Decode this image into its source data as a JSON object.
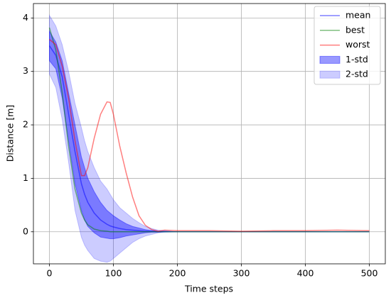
{
  "chart_data": {
    "type": "line",
    "xlabel": "Time steps",
    "ylabel": "Distance [m]",
    "x": [
      0,
      10,
      20,
      30,
      40,
      50,
      55,
      60,
      70,
      80,
      90,
      95,
      100,
      110,
      120,
      130,
      140,
      150,
      160,
      170,
      180,
      200,
      250,
      300,
      350,
      400,
      450,
      500
    ],
    "series": [
      {
        "name": "mean",
        "color": "#0000ff",
        "opacity": 0.5,
        "values": [
          3.48,
          3.3,
          2.9,
          2.2,
          1.5,
          0.9,
          0.7,
          0.55,
          0.35,
          0.22,
          0.14,
          0.11,
          0.09,
          0.06,
          0.04,
          0.03,
          0.02,
          0.01,
          0.01,
          0,
          0,
          0,
          0,
          0,
          0,
          0,
          0,
          0
        ]
      },
      {
        "name": "best",
        "color": "#008000",
        "opacity": 0.5,
        "values": [
          3.82,
          3.4,
          2.6,
          1.6,
          0.8,
          0.35,
          0.22,
          0.13,
          0.05,
          0.02,
          0.01,
          0,
          0,
          0,
          0,
          0,
          0,
          0,
          0,
          0,
          0,
          0,
          0,
          0,
          0,
          0,
          0,
          0
        ]
      },
      {
        "name": "worst",
        "color": "#ff0000",
        "opacity": 0.5,
        "values": [
          3.6,
          3.5,
          3.1,
          2.5,
          1.7,
          1.05,
          1.05,
          1.2,
          1.75,
          2.2,
          2.43,
          2.42,
          2.2,
          1.6,
          1.1,
          0.65,
          0.3,
          0.12,
          0.04,
          0.01,
          0.03,
          0.02,
          0.02,
          0.01,
          0.02,
          0.02,
          0.03,
          0.02
        ]
      }
    ],
    "bands": [
      {
        "name": "1-std",
        "color": "#0000ff",
        "opacity": 0.4,
        "upper": [
          3.75,
          3.55,
          3.2,
          2.6,
          2.0,
          1.4,
          1.2,
          1.0,
          0.75,
          0.55,
          0.4,
          0.35,
          0.3,
          0.22,
          0.15,
          0.1,
          0.07,
          0.04,
          0.02,
          0.01,
          0.01,
          0,
          0,
          0,
          0,
          0,
          0,
          0
        ],
        "lower": [
          3.2,
          3.05,
          2.5,
          1.7,
          0.9,
          0.4,
          0.22,
          0.1,
          -0.02,
          -0.1,
          -0.12,
          -0.13,
          -0.13,
          -0.11,
          -0.08,
          -0.06,
          -0.04,
          -0.02,
          -0.01,
          -0.01,
          0,
          0,
          0,
          0,
          0,
          0,
          0,
          0
        ]
      },
      {
        "name": "2-std",
        "color": "#0000ff",
        "opacity": 0.2,
        "upper": [
          4.05,
          3.85,
          3.5,
          3.0,
          2.4,
          1.95,
          1.7,
          1.5,
          1.2,
          0.95,
          0.8,
          0.7,
          0.6,
          0.45,
          0.35,
          0.25,
          0.17,
          0.1,
          0.06,
          0.03,
          0.02,
          0,
          0,
          0,
          0,
          0,
          0,
          0
        ],
        "lower": [
          2.95,
          2.7,
          2.1,
          1.3,
          0.4,
          -0.1,
          -0.25,
          -0.35,
          -0.5,
          -0.55,
          -0.57,
          -0.55,
          -0.5,
          -0.4,
          -0.3,
          -0.2,
          -0.13,
          -0.08,
          -0.05,
          -0.02,
          -0.01,
          0,
          0,
          0,
          0,
          0,
          0,
          0
        ]
      }
    ],
    "xlim": [
      -25,
      525
    ],
    "ylim": [
      -0.6,
      4.27
    ],
    "xticks": [
      0,
      100,
      200,
      300,
      400,
      500
    ],
    "yticks": [
      0,
      1,
      2,
      3,
      4
    ],
    "grid": true,
    "legend": "upper right"
  }
}
